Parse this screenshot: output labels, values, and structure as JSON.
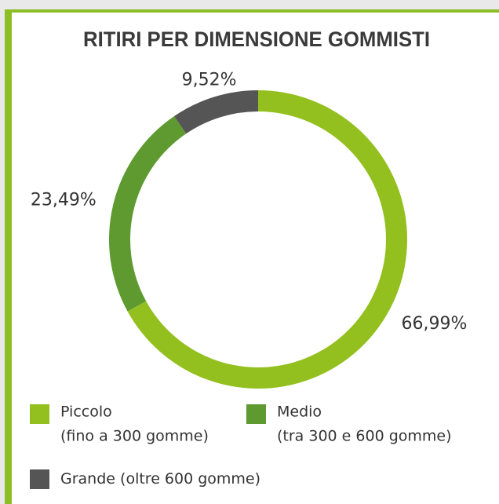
{
  "chart_data": {
    "type": "donut",
    "title": "RITIRI PER DIMENSIONE GOMMISTI",
    "categories": [
      "Piccolo",
      "Medio",
      "Grande"
    ],
    "category_details": [
      "(fino a 300 gomme)",
      "(tra 300 e 600 gomme)",
      "(oltre 600 gomme)"
    ],
    "values": [
      66.99,
      23.49,
      9.52
    ],
    "value_labels": [
      "66,99%",
      "23,49%",
      "9,52%"
    ],
    "colors": [
      "#93c01f",
      "#5e9a2f",
      "#555555"
    ]
  }
}
